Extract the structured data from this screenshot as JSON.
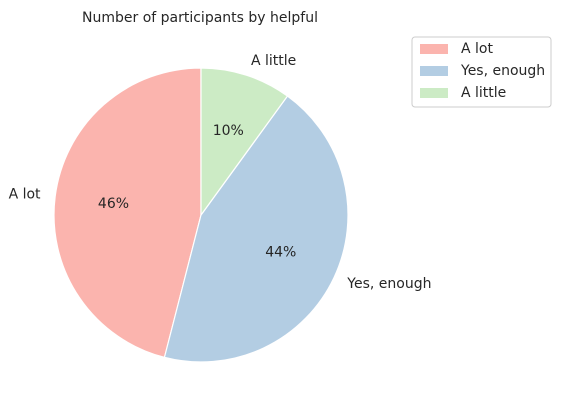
{
  "chart_data": {
    "type": "pie",
    "title": "Number of participants by helpful",
    "categories": [
      "A lot",
      "Yes, enough",
      "A little"
    ],
    "values": [
      46,
      44,
      10
    ],
    "percent_labels": [
      "46%",
      "44%",
      "10%"
    ],
    "colors": [
      "#fbb4ae",
      "#b3cde3",
      "#ccebc5"
    ],
    "start_angle_deg": 90,
    "direction": "counterclockwise",
    "legend": {
      "placement": "top-right",
      "entries": [
        "A lot",
        "Yes, enough",
        "A little"
      ]
    }
  }
}
